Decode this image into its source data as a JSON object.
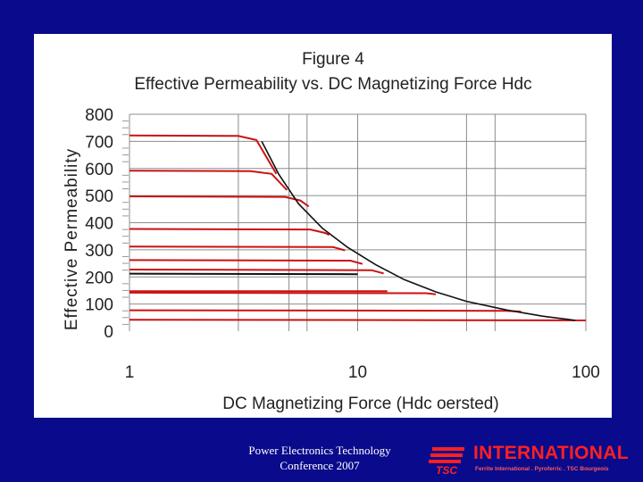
{
  "chart_data": {
    "type": "line",
    "title": "Figure 4",
    "subtitle": "Effective Permeability vs. DC Magnetizing Force Hdc",
    "xlabel": "DC Magnetizing Force (Hdc oersted)",
    "ylabel": "Effective Permeability",
    "x_scale": "log",
    "xlim": [
      1,
      100
    ],
    "ylim": [
      0,
      800
    ],
    "x_ticks": [
      "1",
      "10",
      "100"
    ],
    "y_ticks": [
      "800",
      "700",
      "600",
      "500",
      "400",
      "300",
      "200",
      "100",
      "0"
    ],
    "grid": true,
    "limit_curve": {
      "x": [
        3.8,
        4.5,
        5.5,
        7,
        9,
        12,
        16,
        22,
        30,
        45,
        65,
        90
      ],
      "y": [
        700,
        580,
        470,
        380,
        310,
        245,
        190,
        145,
        110,
        78,
        55,
        40
      ]
    },
    "series": [
      {
        "color": "#cc1111",
        "values": [
          [
            1,
            722
          ],
          [
            3,
            720
          ],
          [
            3.6,
            705
          ],
          [
            4.4,
            580
          ]
        ]
      },
      {
        "color": "#cc1111",
        "values": [
          [
            1,
            592
          ],
          [
            3.4,
            590
          ],
          [
            4.2,
            580
          ],
          [
            4.9,
            520
          ]
        ]
      },
      {
        "color": "#cc1111",
        "values": [
          [
            1,
            497
          ],
          [
            4.8,
            495
          ],
          [
            5.6,
            482
          ],
          [
            6.1,
            460
          ]
        ]
      },
      {
        "color": "#cc1111",
        "values": [
          [
            1,
            377
          ],
          [
            6.2,
            375
          ],
          [
            7.2,
            362
          ],
          [
            7.5,
            355
          ]
        ]
      },
      {
        "color": "#cc1111",
        "values": [
          [
            1,
            312
          ],
          [
            7.8,
            310
          ],
          [
            8.8,
            298
          ]
        ]
      },
      {
        "color": "#cc1111",
        "values": [
          [
            1,
            262
          ],
          [
            9.3,
            260
          ],
          [
            10.5,
            248
          ]
        ]
      },
      {
        "color": "#cc1111",
        "values": [
          [
            1,
            227
          ],
          [
            11.5,
            225
          ],
          [
            13,
            213
          ]
        ]
      },
      {
        "color": "#111111",
        "values": [
          [
            1,
            212
          ],
          [
            10,
            210
          ]
        ]
      },
      {
        "color": "#cc1111",
        "values": [
          [
            1,
            147
          ],
          [
            13.5,
            147
          ]
        ]
      },
      {
        "color": "#cc1111",
        "values": [
          [
            1,
            142
          ],
          [
            20,
            140
          ],
          [
            22,
            136
          ]
        ]
      },
      {
        "color": "#cc1111",
        "values": [
          [
            1,
            77
          ],
          [
            45,
            75
          ],
          [
            52,
            72
          ]
        ]
      },
      {
        "color": "#cc1111",
        "values": [
          [
            1,
            42
          ],
          [
            100,
            40
          ]
        ]
      }
    ]
  },
  "footer": {
    "line1": "Power Electronics Technology",
    "line2": "Conference 2007"
  },
  "logo": {
    "brand": "INTERNATIONAL",
    "mark": "TSC",
    "tagline": "Ferrite International . Pyroferric . TSC Bourgeois",
    "color": "#ff2020"
  },
  "colors": {
    "background": "#0a0a8c",
    "panel": "#ffffff",
    "grid": "#8c8c8c",
    "curves": "#cc1111"
  }
}
